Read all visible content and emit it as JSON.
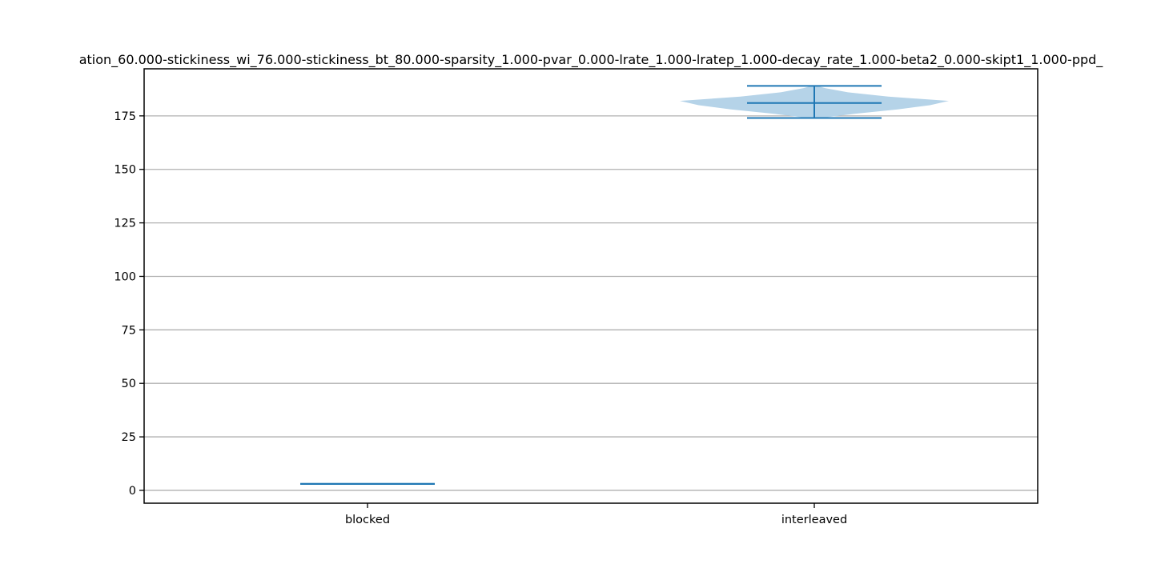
{
  "chart_data": {
    "type": "violin",
    "title": "ation_60.000-stickiness_wi_76.000-stickiness_bt_80.000-sparsity_1.000-pvar_0.000-lrate_1.000-lratep_1.000-decay_rate_1.000-beta2_0.000-skipt1_1.000-ppd_",
    "xlabel": "",
    "ylabel": "",
    "categories": [
      "blocked",
      "interleaved"
    ],
    "ylim": [
      -6,
      197
    ],
    "yticks": [
      0,
      25,
      50,
      75,
      100,
      125,
      150,
      175
    ],
    "grid": "y",
    "series": [
      {
        "category": "blocked",
        "min": 3,
        "mean": 3,
        "max": 3,
        "density": []
      },
      {
        "category": "interleaved",
        "min": 174,
        "mean": 181,
        "max": 189,
        "density": [
          {
            "y": 174,
            "w": 0.05
          },
          {
            "y": 176,
            "w": 0.3
          },
          {
            "y": 178,
            "w": 0.62
          },
          {
            "y": 180,
            "w": 0.86
          },
          {
            "y": 182,
            "w": 1.0
          },
          {
            "y": 184,
            "w": 0.55
          },
          {
            "y": 186,
            "w": 0.25
          },
          {
            "y": 188,
            "w": 0.08
          },
          {
            "y": 189,
            "w": 0.02
          }
        ]
      }
    ],
    "colors": {
      "body": "#b5d3e8",
      "lines": "#1f77b4",
      "grid": "#b0b0b0"
    }
  }
}
